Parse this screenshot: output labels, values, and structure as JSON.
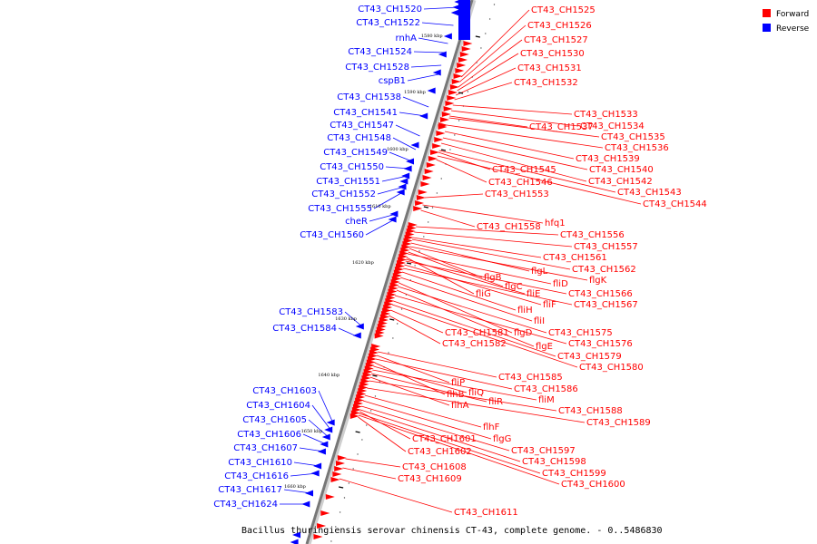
{
  "colors": {
    "forward": "#ff0000",
    "reverse": "#0000ff",
    "backbone": "#777777"
  },
  "legend": [
    {
      "label": "Forward",
      "color": "#ff0000"
    },
    {
      "label": "Reverse",
      "color": "#0000ff"
    }
  ],
  "caption": "Bacillus thuringiensis serovar chinensis CT-43, complete genome. - 0..5486830",
  "ticks": [
    "1580 kbp",
    "1590 kbp",
    "1600 kbp",
    "1610 kbp",
    "1620 kbp",
    "1630 kbp",
    "1640 kbp",
    "1650 kbp",
    "1660 kbp"
  ],
  "reverse_genes": [
    "CT43_CH1520",
    "CT43_CH1522",
    "rnhA",
    "CT43_CH1524",
    "CT43_CH1528",
    "cspB1",
    "CT43_CH1538",
    "CT43_CH1541",
    "CT43_CH1547",
    "CT43_CH1548",
    "CT43_CH1549",
    "CT43_CH1550",
    "CT43_CH1551",
    "CT43_CH1552",
    "CT43_CH1555",
    "cheR",
    "CT43_CH1560",
    "CT43_CH1583",
    "CT43_CH1584",
    "CT43_CH1603",
    "CT43_CH1604",
    "CT43_CH1605",
    "CT43_CH1606",
    "CT43_CH1607",
    "CT43_CH1610",
    "CT43_CH1616",
    "CT43_CH1617",
    "CT43_CH1624"
  ],
  "forward_genes": [
    "CT43_CH1525",
    "CT43_CH1526",
    "CT43_CH1527",
    "CT43_CH1530",
    "CT43_CH1531",
    "CT43_CH1532",
    "CT43_CH1533",
    "CT43_CH1534",
    "CT43_CH1537",
    "CT43_CH1535",
    "CT43_CH1536",
    "CT43_CH1539",
    "CT43_CH1545",
    "CT43_CH1540",
    "CT43_CH1546",
    "CT43_CH1542",
    "CT43_CH1543",
    "CT43_CH1553",
    "CT43_CH1544",
    "hfq1",
    "CT43_CH1558",
    "CT43_CH1556",
    "CT43_CH1557",
    "CT43_CH1561",
    "flgL",
    "CT43_CH1562",
    "flgB",
    "flgK",
    "flgC",
    "fliD",
    "fliG",
    "fliE",
    "CT43_CH1566",
    "fliF",
    "CT43_CH1567",
    "fliH",
    "fliI",
    "CT43_CH1581",
    "flgD",
    "CT43_CH1575",
    "CT43_CH1582",
    "flgE",
    "CT43_CH1576",
    "CT43_CH1579",
    "CT43_CH1580",
    "CT43_CH1585",
    "fliP",
    "CT43_CH1586",
    "flhB",
    "fliQ",
    "fliM",
    "fliR",
    "flhA",
    "CT43_CH1588",
    "CT43_CH1589",
    "flhF",
    "flgG",
    "CT43_CH1601",
    "CT43_CH1597",
    "CT43_CH1602",
    "CT43_CH1598",
    "CT43_CH1608",
    "CT43_CH1599",
    "CT43_CH1609",
    "CT43_CH1600",
    "CT43_CH1611"
  ]
}
